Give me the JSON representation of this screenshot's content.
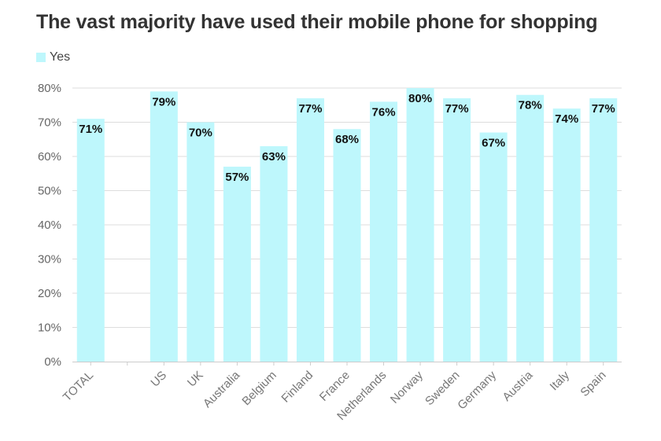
{
  "title": "The vast majority have used their mobile phone for shopping",
  "chart_data": {
    "type": "bar",
    "title": "The vast majority have used their mobile phone for shopping",
    "xlabel": "",
    "ylabel": "",
    "ylim": [
      0,
      80
    ],
    "yticks": [
      "0%",
      "10%",
      "20%",
      "30%",
      "40%",
      "50%",
      "60%",
      "70%",
      "80%"
    ],
    "legend": {
      "position": "top-left",
      "entries": [
        "Yes"
      ]
    },
    "categories": [
      "TOTAL",
      "",
      "US",
      "UK",
      "Australia",
      "Belgium",
      "Finland",
      "France",
      "Netherlands",
      "Norway",
      "Sweden",
      "Germany",
      "Austria",
      "Italy",
      "Spain"
    ],
    "series": [
      {
        "name": "Yes",
        "color": "#bef7fc",
        "values": [
          71,
          null,
          79,
          70,
          57,
          63,
          77,
          68,
          76,
          80,
          77,
          67,
          78,
          74,
          77
        ],
        "labels": [
          "71%",
          "",
          "79%",
          "70%",
          "57%",
          "63%",
          "77%",
          "68%",
          "76%",
          "80%",
          "77%",
          "67%",
          "78%",
          "74%",
          "77%"
        ]
      }
    ]
  }
}
